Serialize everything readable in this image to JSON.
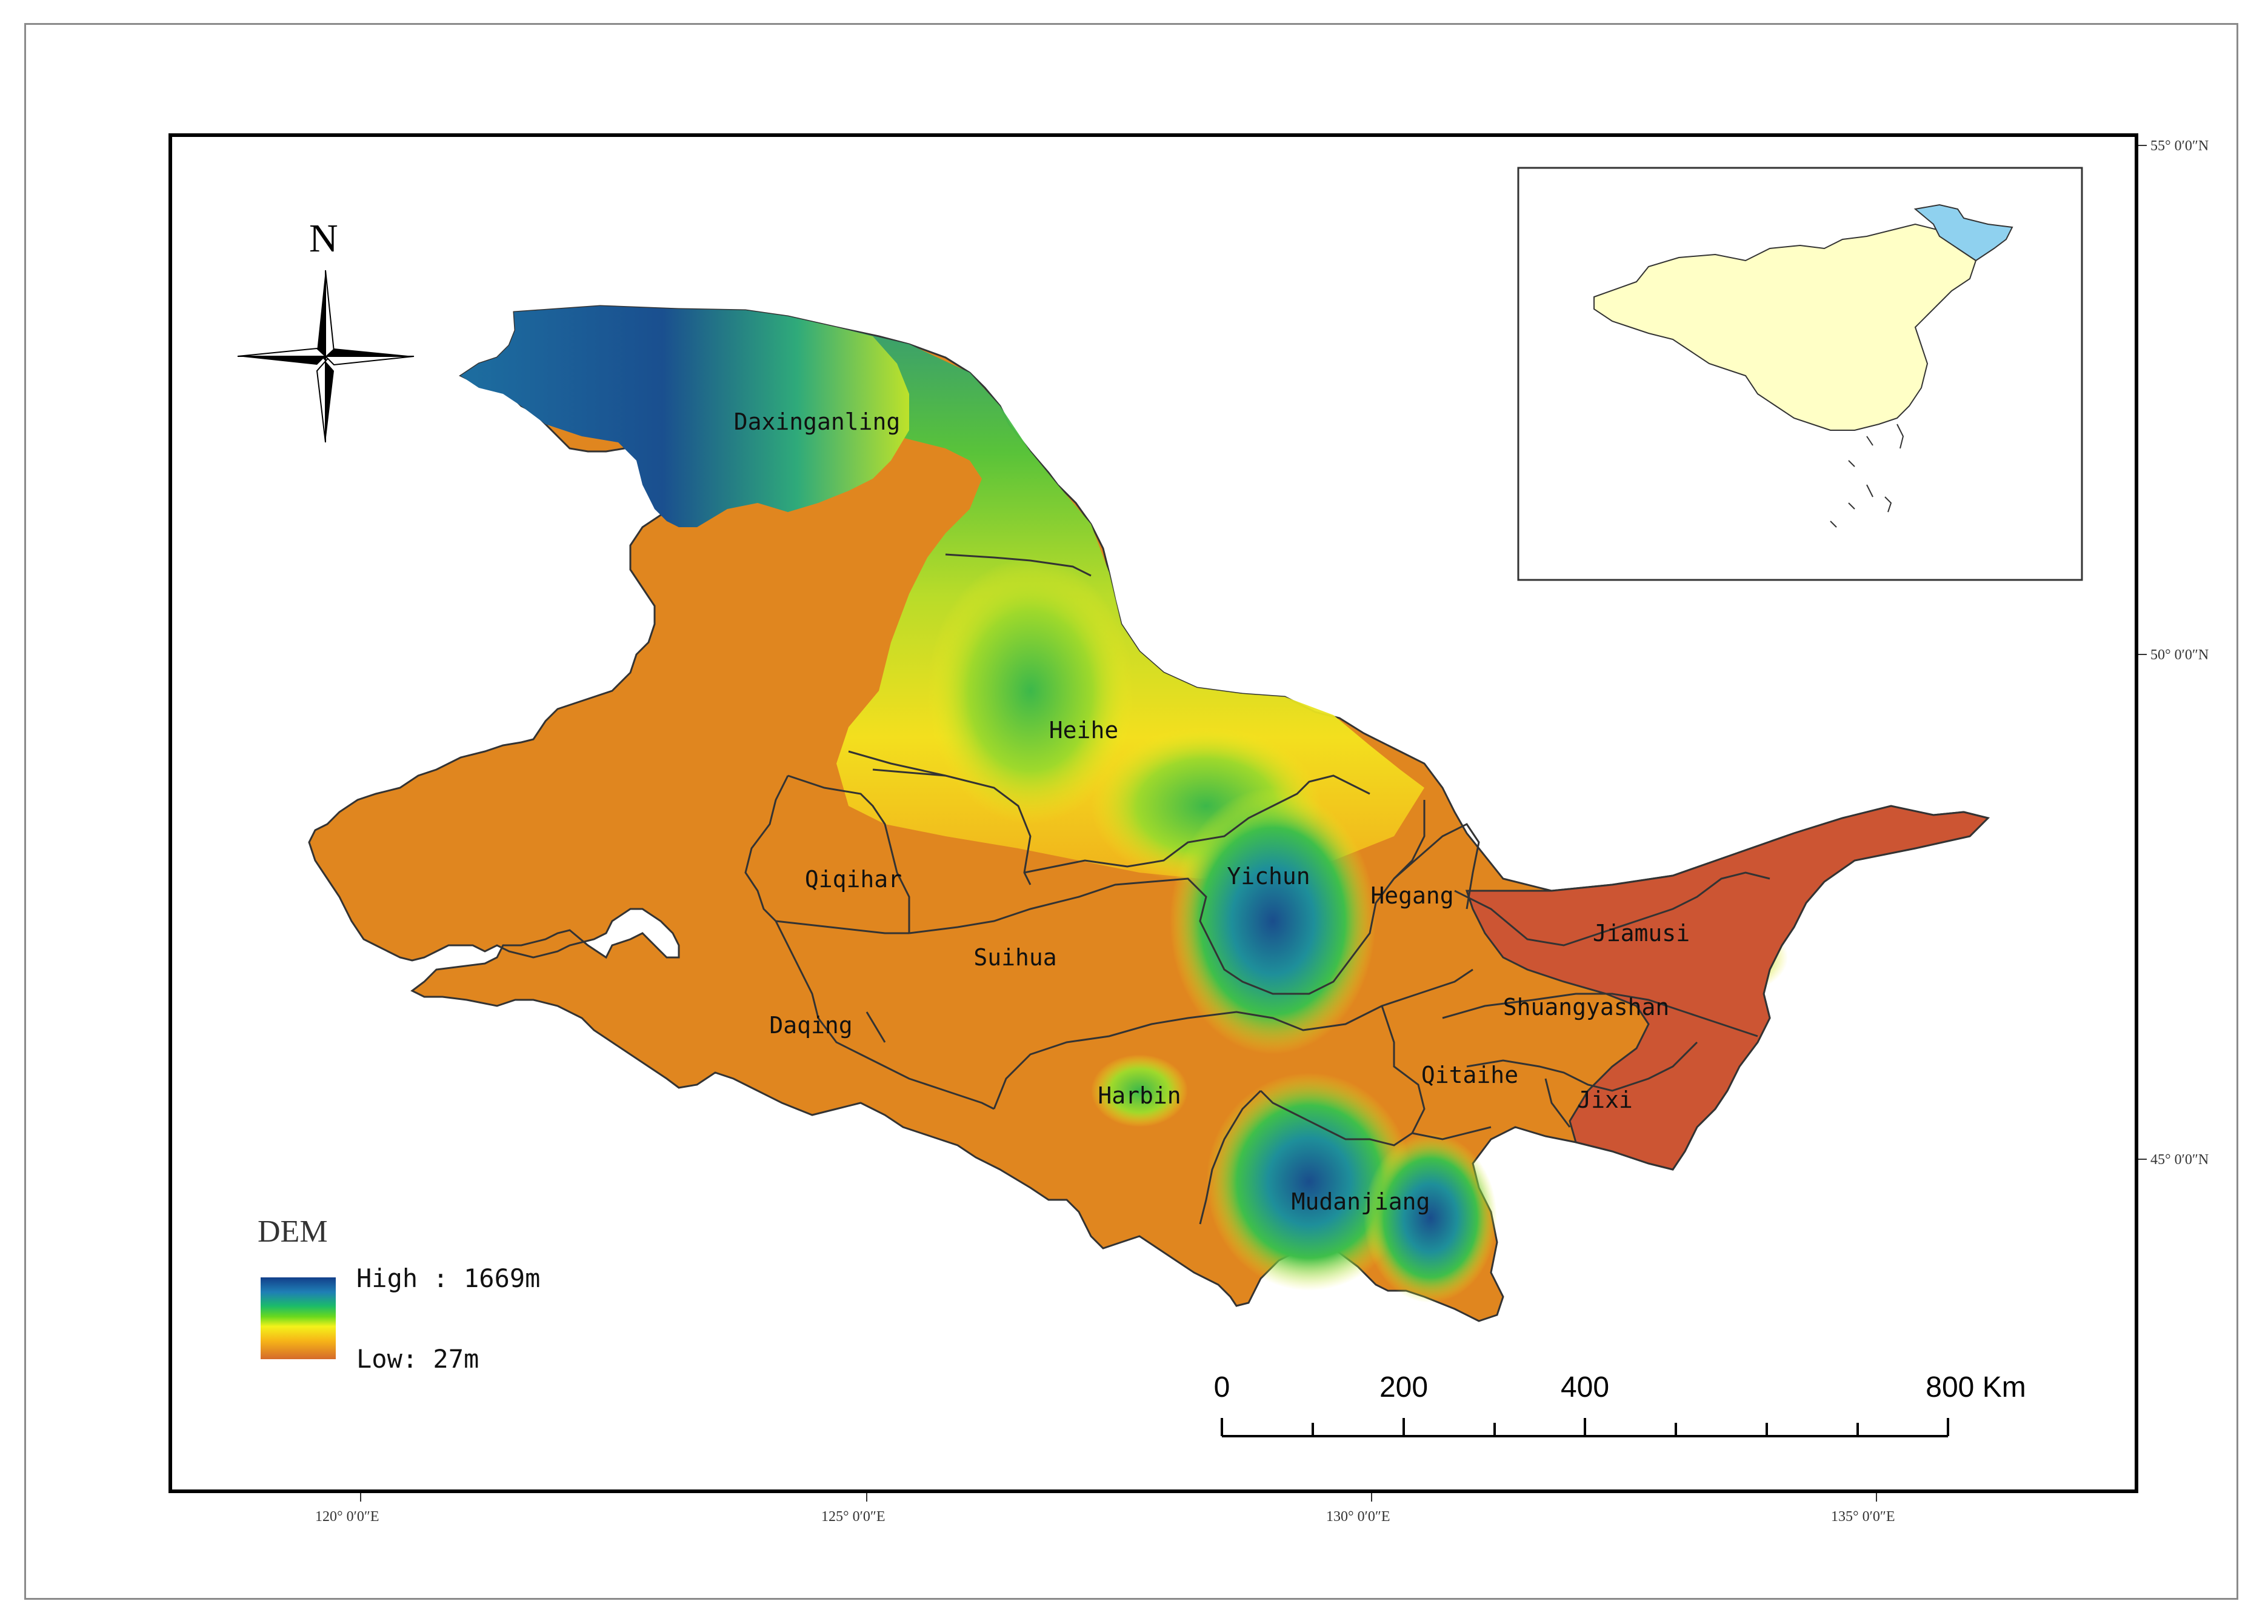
{
  "north_arrow": {
    "label": "N"
  },
  "legend": {
    "title": "DEM",
    "high_label": "High : 1669m",
    "low_label": "Low: 27m"
  },
  "scale_bar": {
    "labels": [
      "0",
      "200",
      "400",
      "800 Km"
    ]
  },
  "graticule": {
    "longitude_labels": [
      "120° 0′0″E",
      "125° 0′0″E",
      "130° 0′0″E",
      "135° 0′0″E"
    ],
    "latitude_labels": [
      "55° 0′0″N",
      "50° 0′0″N",
      "45° 0′0″N"
    ]
  },
  "cities": [
    "Daxinganling",
    "Heihe",
    "Yichun",
    "Hegang",
    "Qiqihar",
    "Suihua",
    "Jiamusi",
    "Shuangyashan",
    "Daqing",
    "Harbin",
    "Qitaihe",
    "Jixi",
    "Mudanjiang"
  ],
  "inset": {
    "highlight_color": "#8fd1ef",
    "base_color": "#ffffc6"
  },
  "colors": {
    "high": "#123f8a",
    "mid": "#1bbb6a",
    "yellow": "#f4f21a",
    "low": "#d56a2a",
    "jiamusi": "#cc5533"
  }
}
